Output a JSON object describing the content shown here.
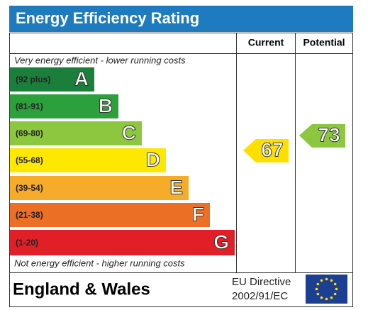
{
  "header": {
    "title": "Energy Efficiency Rating"
  },
  "columns": [
    "Current",
    "Potential"
  ],
  "top_note": "Very energy efficient - lower running costs",
  "bands": [
    {
      "range": "(92 plus)",
      "letter": "A",
      "color": "#1b7f3b"
    },
    {
      "range": "(81-91)",
      "letter": "B",
      "color": "#2ca03c"
    },
    {
      "range": "(69-80)",
      "letter": "C",
      "color": "#8dc63f"
    },
    {
      "range": "(55-68)",
      "letter": "D",
      "color": "#ffe800"
    },
    {
      "range": "(39-54)",
      "letter": "E",
      "color": "#f6ac2a"
    },
    {
      "range": "(21-38)",
      "letter": "F",
      "color": "#ec6f26"
    },
    {
      "range": "(1-20)",
      "letter": "G",
      "color": "#e21f26"
    }
  ],
  "bottom_note": "Not energy efficient - higher running costs",
  "current": {
    "value": "67",
    "color": "#ffdf00"
  },
  "potential": {
    "value": "73",
    "color": "#8dc63f"
  },
  "footer": {
    "region": "England & Wales",
    "directive": [
      "EU Directive",
      "2002/91/EC"
    ]
  }
}
